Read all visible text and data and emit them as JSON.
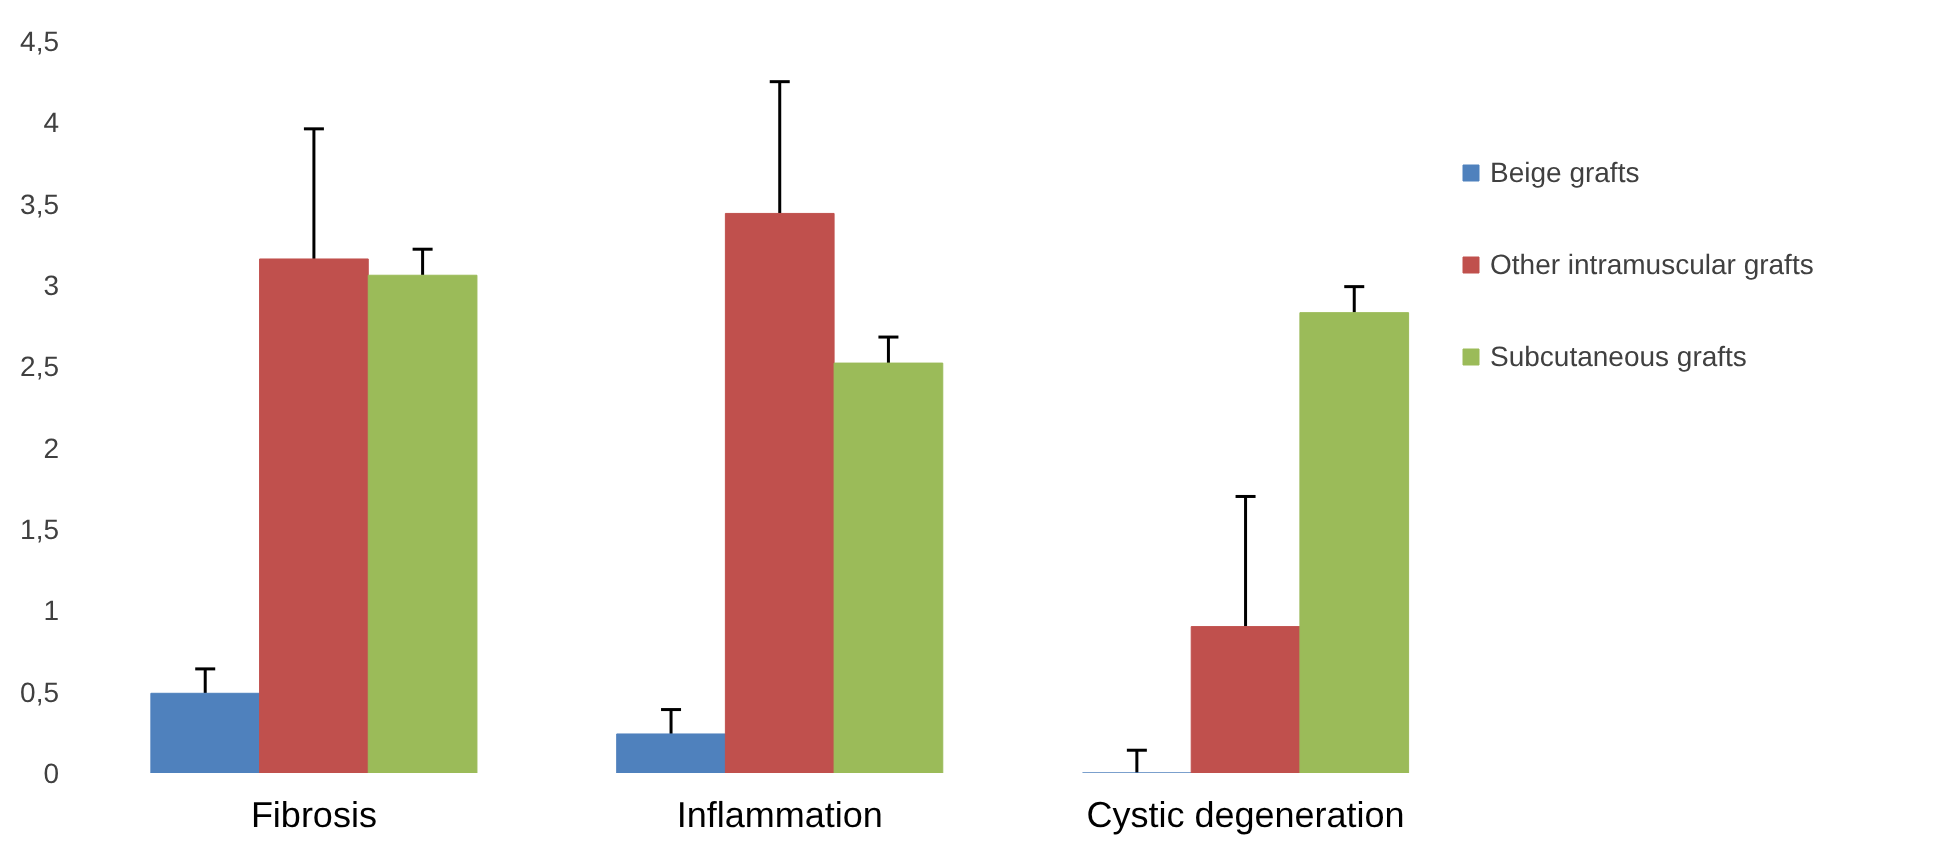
{
  "chart_data": {
    "type": "bar",
    "categories": [
      "Fibrosis",
      "Inflammation",
      "Cystic degeneration"
    ],
    "ylim": [
      0,
      4.5
    ],
    "yticks": [
      0,
      {
        "value": 0.5,
        "label": "0,5"
      },
      1,
      {
        "value": 1.5,
        "label": "1,5"
      },
      2,
      {
        "value": 2.5,
        "label": "2,5"
      },
      3,
      {
        "value": 3.5,
        "label": "3,5"
      },
      4,
      {
        "value": 4.5,
        "label": "4,5"
      }
    ],
    "grid": false,
    "legend": "right",
    "series": [
      {
        "name": "Beige grafts",
        "color": "#4f81bd",
        "values": [
          0.49,
          0.24,
          0
        ],
        "errors": [
          [
            0.49,
            0.64
          ],
          [
            0.24,
            0.39
          ],
          [
            0,
            0.14
          ]
        ]
      },
      {
        "name": "Other intramuscular grafts",
        "color": "#c0504d",
        "values": [
          3.16,
          3.44,
          0.9
        ],
        "errors": [
          [
            3.16,
            3.96
          ],
          [
            3.44,
            4.25
          ],
          [
            0.9,
            1.7
          ]
        ]
      },
      {
        "name": "Subcutaneous grafts",
        "color": "#9bbb59",
        "values": [
          3.06,
          2.52,
          2.83
        ],
        "errors": [
          [
            3.06,
            3.22
          ],
          [
            2.52,
            2.68
          ],
          [
            2.83,
            2.99
          ]
        ]
      }
    ]
  }
}
